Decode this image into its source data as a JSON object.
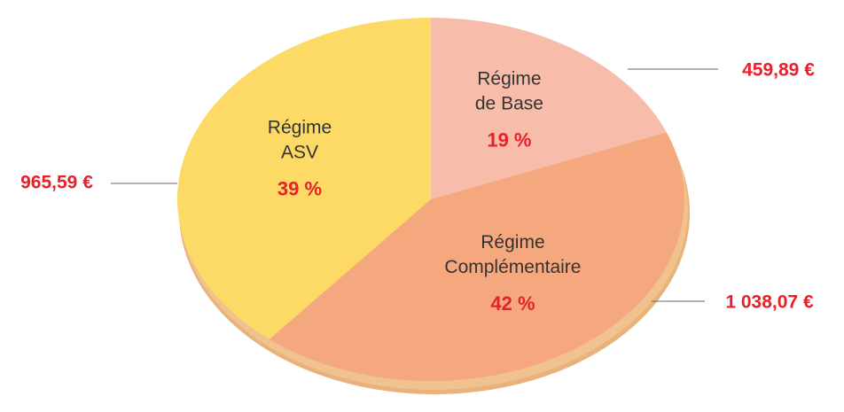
{
  "chart_data": {
    "type": "pie",
    "categories": [
      [
        "Régime",
        "de Base"
      ],
      [
        "Régime",
        "Complémentaire"
      ],
      [
        "Régime",
        "ASV"
      ]
    ],
    "values": [
      19,
      42,
      39
    ],
    "value_labels": [
      "19 %",
      "42 %",
      "39 %"
    ],
    "amounts": [
      459.89,
      1038.07,
      965.59
    ],
    "amount_labels": [
      "459,89 €",
      "1 038,07 €",
      "965,59 €"
    ],
    "colors": [
      "#f8bcaa",
      "#f5a77e",
      "#fdd966"
    ]
  }
}
